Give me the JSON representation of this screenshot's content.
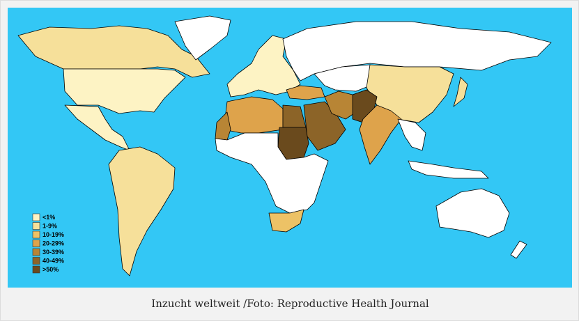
{
  "map": {
    "legend": [
      {
        "label": "<1%",
        "color": "#fdf3c4"
      },
      {
        "label": "1-9%",
        "color": "#f6e09a"
      },
      {
        "label": "10-19%",
        "color": "#edc266"
      },
      {
        "label": "20-29%",
        "color": "#dea34b"
      },
      {
        "label": "30-39%",
        "color": "#b88535"
      },
      {
        "label": "40-49%",
        "color": "#8c6428"
      },
      {
        "label": ">50%",
        "color": "#6a4a1d"
      }
    ]
  },
  "caption": "Inzucht weltweit  /Foto: Reproductive Health Journal"
}
